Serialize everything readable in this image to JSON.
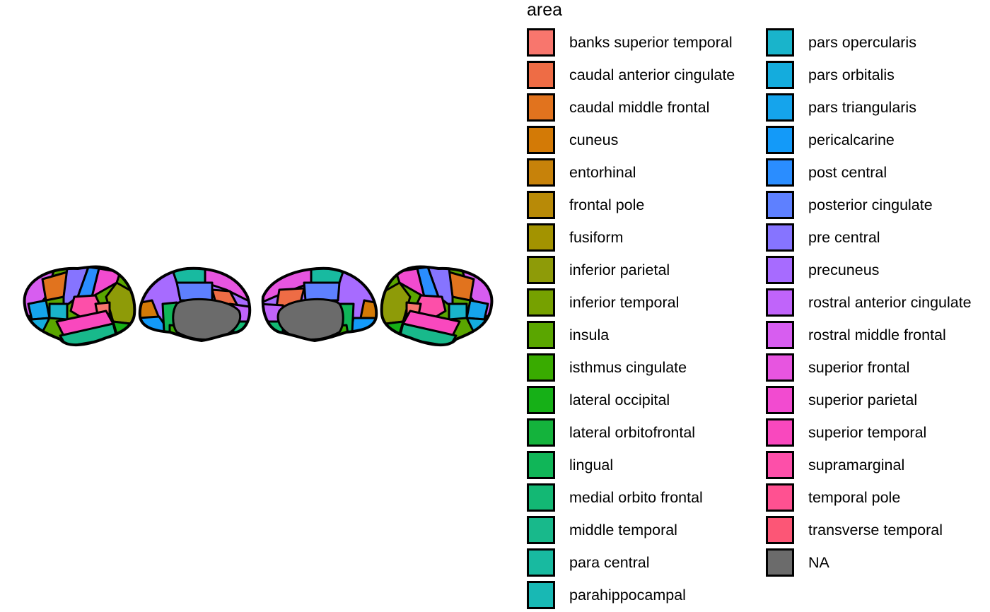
{
  "legend": {
    "title": "area",
    "columns": [
      [
        {
          "label": "banks superior temporal",
          "color": "#F8766D"
        },
        {
          "label": "caudal anterior cingulate",
          "color": "#EE6C45"
        },
        {
          "label": "caudal middle frontal",
          "color": "#E1731E"
        },
        {
          "label": "cuneus",
          "color": "#D37A06"
        },
        {
          "label": "entorhinal",
          "color": "#C7820A"
        },
        {
          "label": "frontal pole",
          "color": "#B88A07"
        },
        {
          "label": "fusiform",
          "color": "#A39300"
        },
        {
          "label": "inferior parietal",
          "color": "#8E9B08"
        },
        {
          "label": "inferior temporal",
          "color": "#76A100"
        },
        {
          "label": "insula",
          "color": "#5AA600"
        },
        {
          "label": "isthmus cingulate",
          "color": "#39AB00"
        },
        {
          "label": "lateral occipital",
          "color": "#16B017"
        },
        {
          "label": "lateral orbitofrontal",
          "color": "#14B33C"
        },
        {
          "label": "lingual",
          "color": "#10B658"
        },
        {
          "label": "medial orbito frontal",
          "color": "#13B874"
        },
        {
          "label": "middle temporal",
          "color": "#18B98B"
        },
        {
          "label": "para central",
          "color": "#18BAA0"
        },
        {
          "label": "parahippocampal",
          "color": "#18B8B4"
        }
      ],
      [
        {
          "label": "pars opercularis",
          "color": "#19B4CB"
        },
        {
          "label": "pars orbitalis",
          "color": "#14ACDD"
        },
        {
          "label": "pars triangularis",
          "color": "#15A4EC"
        },
        {
          "label": "pericalcarine",
          "color": "#139AF9"
        },
        {
          "label": "post central",
          "color": "#2A8DFF"
        },
        {
          "label": "posterior cingulate",
          "color": "#5E80FF"
        },
        {
          "label": "pre central",
          "color": "#8674FF"
        },
        {
          "label": "precuneus",
          "color": "#A76BFF"
        },
        {
          "label": "rostral anterior cingulate",
          "color": "#C064FA"
        },
        {
          "label": "rostral middle frontal",
          "color": "#D75DF0"
        },
        {
          "label": "superior frontal",
          "color": "#E755E0"
        },
        {
          "label": "superior parietal",
          "color": "#F24BD0"
        },
        {
          "label": "superior temporal",
          "color": "#F948BE"
        },
        {
          "label": "supramarginal",
          "color": "#FD4FA9"
        },
        {
          "label": "temporal pole",
          "color": "#FF5191"
        },
        {
          "label": "transverse temporal",
          "color": "#FC5676"
        },
        {
          "label": "NA",
          "color": "#6B6B6B"
        }
      ]
    ]
  }
}
